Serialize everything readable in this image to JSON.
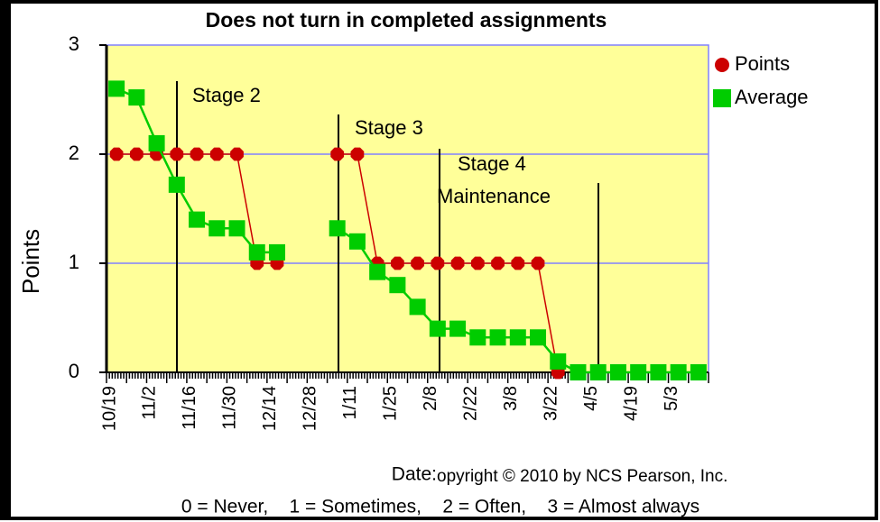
{
  "chart_data": {
    "type": "line",
    "title": "Does not turn in completed assignments",
    "y_label": "Points",
    "x_label": "Date:",
    "footnote": "opyright © 2010 by NCS Pearson, Inc.",
    "scale_note": "0 = Never,    1 = Sometimes,    2 = Often,    3 = Almost always",
    "annotations": [
      "Stage 2",
      "Stage 3",
      "Stage 4",
      "Maintenance"
    ],
    "categories": [
      "10/19",
      null,
      "11/2",
      null,
      "11/16",
      null,
      "11/30",
      null,
      "12/14",
      null,
      "12/28",
      null,
      "1/11",
      null,
      "1/25",
      null,
      "2/8",
      null,
      "2/22",
      null,
      "3/8",
      null,
      "3/22",
      null,
      "4/5",
      null,
      "4/19",
      null,
      "5/3",
      null
    ],
    "series": [
      {
        "name": "Points",
        "color": "#cc0000",
        "values": [
          2,
          2,
          2,
          2,
          2,
          2,
          2,
          1,
          1,
          null,
          null,
          2,
          2,
          1,
          1,
          1,
          1,
          1,
          1,
          1,
          1,
          1,
          0,
          null,
          null,
          null,
          null,
          null,
          null,
          null
        ]
      },
      {
        "name": "Average",
        "color": "#00cc00",
        "values": [
          2.6,
          2.52,
          2.1,
          1.72,
          1.4,
          1.32,
          1.32,
          1.1,
          1.1,
          null,
          null,
          1.32,
          1.2,
          0.92,
          0.8,
          0.6,
          0.4,
          0.4,
          0.32,
          0.32,
          0.32,
          0.32,
          0.1,
          0,
          0,
          0,
          0,
          0,
          0,
          0
        ]
      }
    ],
    "ylim": [
      0,
      3
    ],
    "yticks": [
      0,
      1,
      2,
      3
    ],
    "grid": true,
    "legend": "right",
    "plot_color": "#ffff99"
  }
}
